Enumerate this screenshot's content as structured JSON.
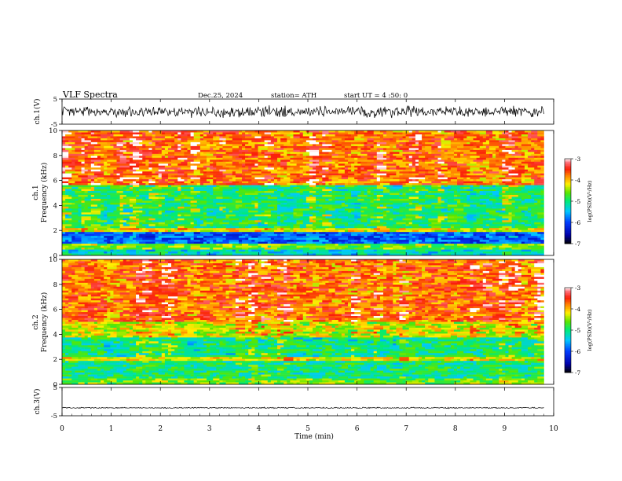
{
  "header": {
    "title": "VLF  Spectra",
    "date": "Dec.25, 2024",
    "station": "station= ATH",
    "start": "start  UT  =   4  :50: 0"
  },
  "chart_data": [
    {
      "type": "line",
      "ylabel": "ch.1(V)",
      "ylim": [
        -5,
        5
      ],
      "xlim": [
        0,
        10
      ],
      "yticks": [
        {
          "v": 5,
          "t": "5"
        },
        {
          "v": -5,
          "t": "-5"
        }
      ],
      "trace": {
        "center": 0,
        "amplitude": 2.6,
        "end_time": 9.8
      }
    },
    {
      "type": "heatmap",
      "ylabel_lines": [
        "ch.1",
        "Frequency  (kHz)"
      ],
      "ylim": [
        0,
        10
      ],
      "xlim": [
        0,
        10
      ],
      "yticks": [
        0,
        2,
        4,
        6,
        8,
        10
      ],
      "data_end_time": 9.8,
      "bands": [
        {
          "f0": 0.0,
          "f1": 0.5,
          "level": -5.3
        },
        {
          "f0": 0.5,
          "f1": 0.95,
          "level": -4.6
        },
        {
          "f0": 0.95,
          "f1": 1.9,
          "level": -5.9
        },
        {
          "f0": 1.9,
          "f1": 2.2,
          "level": -4.2
        },
        {
          "f0": 2.2,
          "f1": 5.6,
          "level": -4.9
        },
        {
          "f0": 5.6,
          "f1": 10.0,
          "level": -3.7
        }
      ],
      "colorbar": {
        "min": -7,
        "max": -3,
        "ticks": [
          -3,
          -4,
          -5,
          -6,
          -7
        ],
        "label": "log(PSD)(V²/Hz)"
      }
    },
    {
      "type": "heatmap",
      "ylabel_lines": [
        "ch.2",
        "Frequency  (kHz)"
      ],
      "ylim": [
        0,
        10
      ],
      "xlim": [
        0,
        10
      ],
      "yticks": [
        0,
        2,
        4,
        6,
        8,
        10
      ],
      "data_end_time": 9.8,
      "bands": [
        {
          "f0": 0.0,
          "f1": 0.5,
          "level": -4.6
        },
        {
          "f0": 0.5,
          "f1": 1.9,
          "level": -5.0
        },
        {
          "f0": 1.9,
          "f1": 2.2,
          "level": -4.2
        },
        {
          "f0": 2.2,
          "f1": 3.8,
          "level": -5.0
        },
        {
          "f0": 3.8,
          "f1": 5.0,
          "level": -4.3
        },
        {
          "f0": 5.0,
          "f1": 10.0,
          "level": -3.7
        }
      ],
      "colorbar": {
        "min": -7,
        "max": -3,
        "ticks": [
          -3,
          -4,
          -5,
          -6,
          -7
        ],
        "label": "log(PSD)(V²/Hz)"
      }
    },
    {
      "type": "line",
      "ylabel": "ch.3(V)",
      "ylim": [
        -5,
        5
      ],
      "xlim": [
        0,
        10
      ],
      "yticks": [
        {
          "v": 5,
          "t": "5"
        },
        {
          "v": -5,
          "t": "-5"
        }
      ],
      "trace": {
        "center": -2.2,
        "amplitude": 0.25,
        "end_time": 9.8
      }
    }
  ],
  "x_axis": {
    "label": "Time  (min)",
    "ticks": [
      0,
      1,
      2,
      3,
      4,
      5,
      6,
      7,
      8,
      9,
      10
    ]
  }
}
